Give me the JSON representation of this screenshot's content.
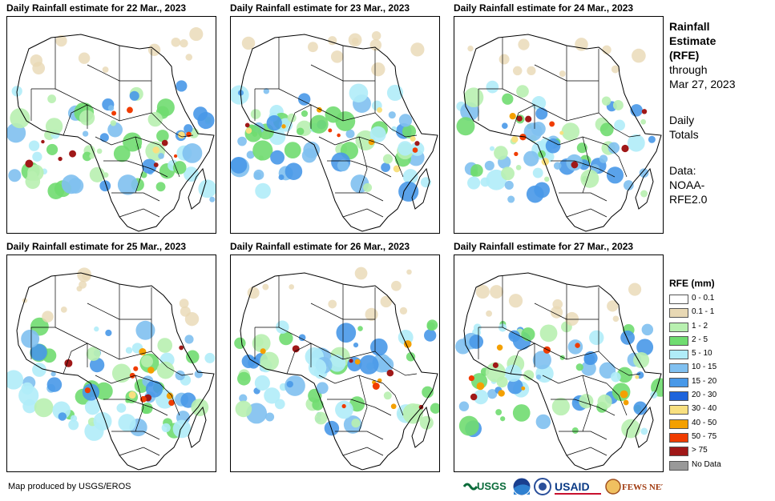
{
  "panels": [
    {
      "title": "Daily Rainfall estimate for 22 Mar., 2023"
    },
    {
      "title": "Daily Rainfall estimate for 23 Mar., 2023"
    },
    {
      "title": "Daily Rainfall estimate for 24 Mar., 2023"
    },
    {
      "title": "Daily Rainfall estimate for 25 Mar., 2023"
    },
    {
      "title": "Daily Rainfall estimate for 26 Mar., 2023"
    },
    {
      "title": "Daily Rainfall estimate for 27 Mar., 2023"
    }
  ],
  "side": {
    "heading1": "Rainfall",
    "heading2": "Estimate",
    "heading3": "(RFE)",
    "through": "through",
    "date": "Mar 27, 2023",
    "totals1": "Daily",
    "totals2": "Totals",
    "data1": "Data:",
    "data2": "NOAA-",
    "data3": "RFE2.0"
  },
  "legend": {
    "title": "RFE (mm)",
    "items": [
      {
        "label": "0 - 0.1",
        "color": "#ffffff"
      },
      {
        "label": "0.1 - 1",
        "color": "#e8d8b4"
      },
      {
        "label": "1 - 2",
        "color": "#b8f0b0"
      },
      {
        "label": "2 - 5",
        "color": "#70dc70"
      },
      {
        "label": "5 - 10",
        "color": "#b0ecf8"
      },
      {
        "label": "10 - 15",
        "color": "#80c0f0"
      },
      {
        "label": "15 - 20",
        "color": "#4898e8"
      },
      {
        "label": "20 - 30",
        "color": "#1e64dc"
      },
      {
        "label": "30 - 40",
        "color": "#f8e080"
      },
      {
        "label": "40 - 50",
        "color": "#f4a000"
      },
      {
        "label": "50 - 75",
        "color": "#f03c00"
      },
      {
        "label": "> 75",
        "color": "#a01818"
      },
      {
        "label": "No Data",
        "color": "#999999"
      }
    ]
  },
  "credit": "Map produced by USGS/EROS",
  "logos": {
    "usgs": "USGS",
    "usaid": "USAID",
    "fews": "FEWS NET"
  }
}
